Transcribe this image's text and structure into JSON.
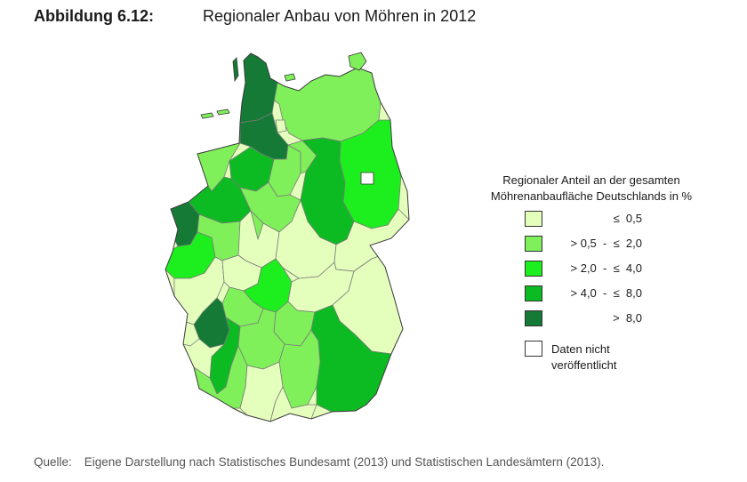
{
  "figure": {
    "label": "Abbildung 6.12:",
    "title": "Regionaler Anbau von Möhren in 2012"
  },
  "legend": {
    "title_line1": "Regionaler Anteil an der gesamten",
    "title_line2": "Möhrenanbaufläche Deutschlands in %",
    "items": [
      {
        "label": "≤  0,5",
        "color": "#e4ffbc"
      },
      {
        "label": "> 0,5  -  ≤  2,0",
        "color": "#7ff05a"
      },
      {
        "label": "> 2,0  -  ≤  4,0",
        "color": "#1dee1d"
      },
      {
        "label": "> 4,0  -  ≤  8,0",
        "color": "#0cbb21"
      },
      {
        "label": ">  8,0",
        "color": "#147a35"
      },
      {
        "label_line1": "Daten nicht",
        "label_line2": "veröffentlicht",
        "color": "#ffffff"
      }
    ]
  },
  "source": {
    "prefix": "Quelle:",
    "text": "Eigene Darstellung nach Statistisches Bundesamt (2013) und Statistischen Landesämtern (2013)."
  }
}
